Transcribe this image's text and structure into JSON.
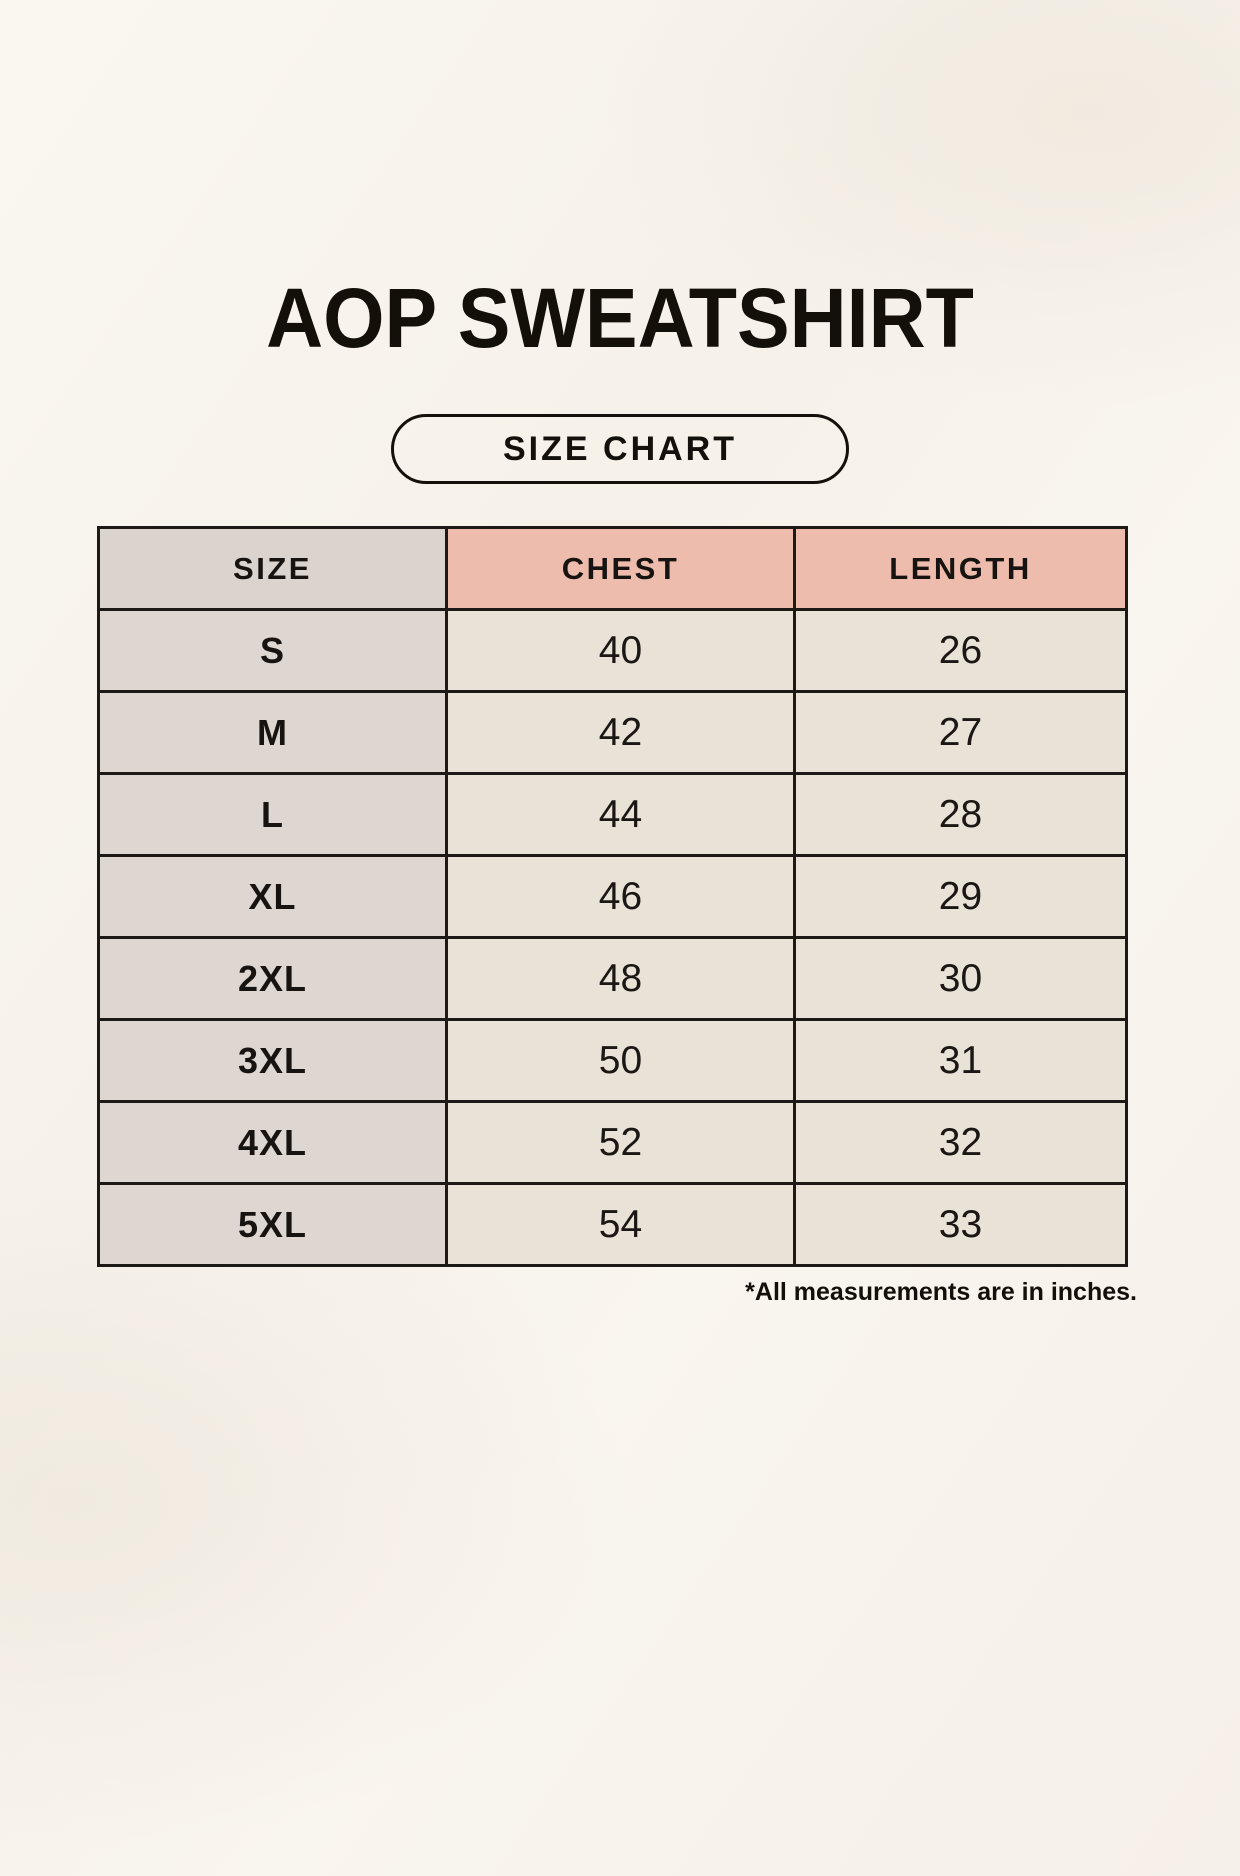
{
  "header": {
    "title": "AOP SWEATSHIRT",
    "badge_label": "SIZE CHART"
  },
  "table": {
    "columns": [
      "SIZE",
      "CHEST",
      "LENGTH"
    ],
    "rows": [
      {
        "size": "S",
        "chest": "40",
        "length": "26"
      },
      {
        "size": "M",
        "chest": "42",
        "length": "27"
      },
      {
        "size": "L",
        "chest": "44",
        "length": "28"
      },
      {
        "size": "XL",
        "chest": "46",
        "length": "29"
      },
      {
        "size": "2XL",
        "chest": "48",
        "length": "30"
      },
      {
        "size": "3XL",
        "chest": "50",
        "length": "31"
      },
      {
        "size": "4XL",
        "chest": "52",
        "length": "32"
      },
      {
        "size": "5XL",
        "chest": "54",
        "length": "33"
      }
    ],
    "units_note": "*All measurements are in inches."
  },
  "colors": {
    "background": "#f7f3ec",
    "size_column": "#ddd6d1",
    "header_accent_pink": "#edbcad",
    "data_cell_beige": "#e9e2d6",
    "border": "#1c1916",
    "text": "#141210"
  }
}
